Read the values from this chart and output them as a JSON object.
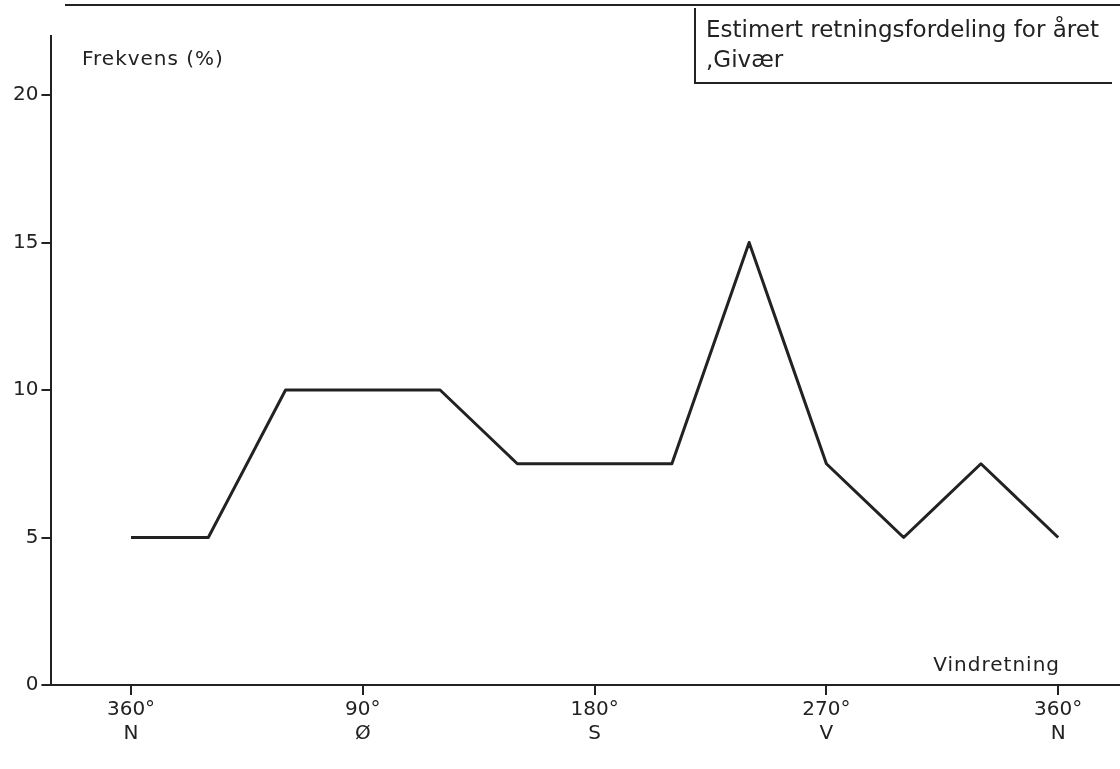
{
  "chart_data": {
    "type": "line",
    "title": "Estimert retningsfordeling for året ,Givær",
    "xlabel": "Vindretning",
    "ylabel": "Frekvens (%)",
    "categories": [
      "360°\nN",
      null,
      null,
      "90°\nØ",
      null,
      null,
      "180°\nS",
      null,
      null,
      "270°\nV",
      null,
      null,
      "360°\nN"
    ],
    "series": [
      {
        "color": "#222222",
        "values": [
          5,
          5,
          10,
          10,
          10,
          7.5,
          7.5,
          7.5,
          15,
          7.5,
          5,
          7.5,
          5
        ]
      }
    ],
    "ylim": [
      0,
      22
    ],
    "yticks": [
      0,
      5,
      10,
      15,
      20
    ],
    "grid": false,
    "legend": false,
    "marker": "none",
    "line_style": "solid"
  }
}
